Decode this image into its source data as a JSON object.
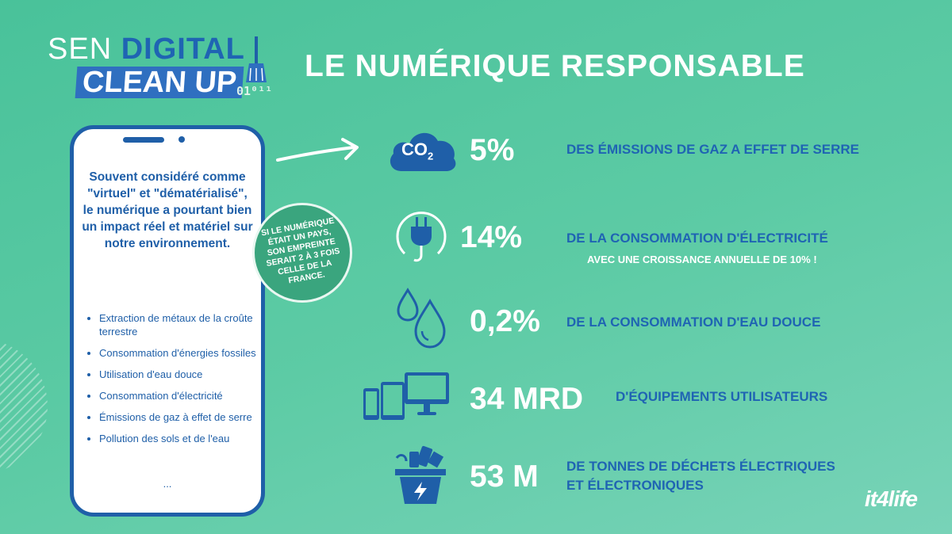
{
  "logo": {
    "line1_a": "SEN",
    "line1_b": "DIGITAL",
    "line2": "CLEAN UP",
    "binary": "01⁰¹¹"
  },
  "title": "LE NUMÉRIQUE RESPONSABLE",
  "phone": {
    "lead": "Souvent considéré comme \"virtuel\" et \"dématérialisé\", le numérique a pourtant bien un impact réel et matériel sur notre environnement.",
    "items": [
      "Extraction de métaux de la croûte terrestre",
      "Consommation d'énergies fossiles",
      "Utilisation d'eau douce",
      "Consommation d'électricité",
      "Émissions de gaz à effet de serre",
      "Pollution des sols et de l'eau"
    ],
    "more": "..."
  },
  "circle": "SI LE NUMÉRIQUE ÉTAIT UN PAYS, SON EMPREINTE SERAIT 2 À 3 FOIS CELLE DE LA FRANCE.",
  "stats": [
    {
      "icon": "co2-cloud-icon",
      "icon_text": "CO",
      "icon_sub": "2",
      "value": "5%",
      "desc": "DES ÉMISSIONS DE GAZ A EFFET DE SERRE"
    },
    {
      "icon": "plug-icon",
      "value": "14%",
      "desc": "DE LA CONSOMMATION D'ÉLECTRICITÉ",
      "sub": "AVEC UNE CROISSANCE ANNUELLE DE 10% !"
    },
    {
      "icon": "water-drops-icon",
      "value": "0,2%",
      "desc": "DE LA CONSOMMATION D'EAU DOUCE"
    },
    {
      "icon": "devices-icon",
      "value": "34 MRD",
      "desc": "D'ÉQUIPEMENTS UTILISATEURS"
    },
    {
      "icon": "ewaste-bin-icon",
      "value": "53 M",
      "desc_l1": "DE TONNES DE DÉCHETS ÉLECTRIQUES",
      "desc_l2": "ET ÉLECTRONIQUES"
    }
  ],
  "brand": "it4life",
  "colors": {
    "background": "#52c49f",
    "primary_blue": "#1f64b3",
    "circle_green": "#3aa57e",
    "white": "#ffffff"
  }
}
